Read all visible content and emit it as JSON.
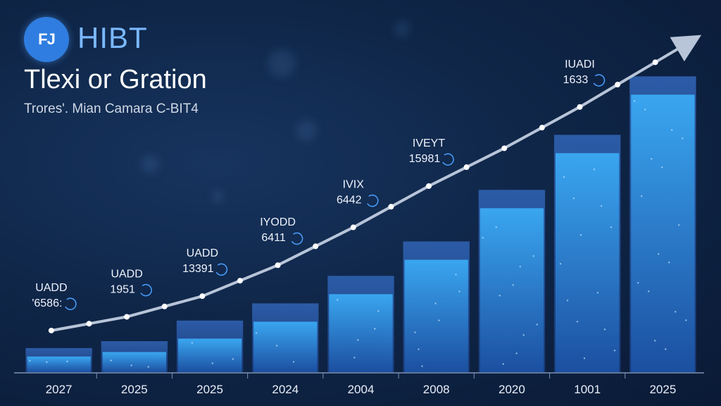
{
  "header": {
    "logo_text": "FJ",
    "brand": "HIBT",
    "title": "Tlexi or Gration",
    "subtitle": "Trores'. Mian Camara C-BIT4"
  },
  "chart_data": {
    "type": "bar",
    "categories": [
      "2027",
      "2025",
      "2025",
      "2024",
      "2004",
      "2008",
      "2020",
      "1001",
      "2025"
    ],
    "values": [
      7,
      9,
      15,
      20,
      28,
      38,
      53,
      69,
      86
    ],
    "line": [
      8,
      12,
      18,
      27,
      38,
      50,
      61,
      73,
      86
    ],
    "annotations": [
      {
        "index": 0,
        "name": "UADD",
        "value": "'6586:"
      },
      {
        "index": 1,
        "name": "UADD",
        "value": "1951"
      },
      {
        "index": 2,
        "name": "UADD",
        "value": "13391"
      },
      {
        "index": 3,
        "name": "IYODD",
        "value": "6411"
      },
      {
        "index": 4,
        "name": "IVIX",
        "value": "6442"
      },
      {
        "index": 5,
        "name": "IVEYT",
        "value": "15981"
      },
      {
        "index": 7,
        "name": "IUADI",
        "value": "1633"
      }
    ],
    "ylim": [
      0,
      100
    ],
    "grid": false,
    "colors": {
      "bar_top": "#3a6fc0",
      "bar_body": "#2f8fe0",
      "bar_dark": "#1d4f99",
      "line": "#b8c4d8",
      "axis": "#7d93b5"
    }
  }
}
